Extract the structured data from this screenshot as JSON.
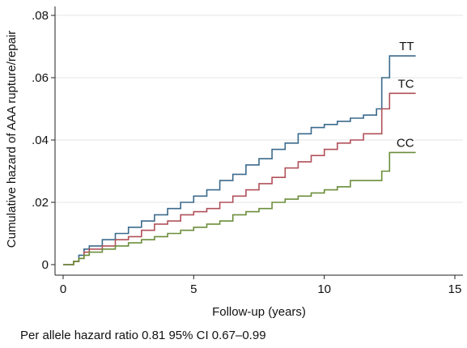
{
  "chart_data": {
    "type": "line",
    "step": true,
    "xlabel": "Follow-up (years)",
    "ylabel": "Cumulative hazard of AAA rupture/repair",
    "xlim": [
      0,
      15
    ],
    "ylim": [
      0,
      0.08
    ],
    "x_ticks": [
      0,
      5,
      10,
      15
    ],
    "x_tick_labels": [
      "0",
      "5",
      "10",
      "15"
    ],
    "y_ticks": [
      0,
      0.02,
      0.04,
      0.06,
      0.08
    ],
    "y_tick_labels": [
      "0",
      ".02",
      ".04",
      ".06",
      ".08"
    ],
    "grid": "horizontal",
    "series": [
      {
        "name": "TT",
        "color": "#3b6a8c",
        "points": [
          [
            0,
            0
          ],
          [
            0.3,
            0
          ],
          [
            0.4,
            0.001
          ],
          [
            0.6,
            0.003
          ],
          [
            0.8,
            0.005
          ],
          [
            1,
            0.006
          ],
          [
            1.5,
            0.008
          ],
          [
            2,
            0.01
          ],
          [
            2.5,
            0.012
          ],
          [
            3,
            0.014
          ],
          [
            3.5,
            0.016
          ],
          [
            4,
            0.018
          ],
          [
            4.5,
            0.02
          ],
          [
            5,
            0.022
          ],
          [
            5.5,
            0.024
          ],
          [
            6,
            0.027
          ],
          [
            6.5,
            0.029
          ],
          [
            7,
            0.032
          ],
          [
            7.5,
            0.034
          ],
          [
            8,
            0.037
          ],
          [
            8.5,
            0.039
          ],
          [
            9,
            0.042
          ],
          [
            9.5,
            0.044
          ],
          [
            10,
            0.045
          ],
          [
            10.5,
            0.046
          ],
          [
            11,
            0.047
          ],
          [
            11.5,
            0.048
          ],
          [
            12,
            0.05
          ],
          [
            12.2,
            0.06
          ],
          [
            12.5,
            0.067
          ],
          [
            13.5,
            0.067
          ]
        ]
      },
      {
        "name": "TC",
        "color": "#b0505a",
        "points": [
          [
            0,
            0
          ],
          [
            0.3,
            0
          ],
          [
            0.4,
            0.001
          ],
          [
            0.6,
            0.002
          ],
          [
            0.8,
            0.004
          ],
          [
            1,
            0.005
          ],
          [
            1.5,
            0.006
          ],
          [
            2,
            0.008
          ],
          [
            2.5,
            0.009
          ],
          [
            3,
            0.011
          ],
          [
            3.5,
            0.013
          ],
          [
            4,
            0.014
          ],
          [
            4.5,
            0.016
          ],
          [
            5,
            0.017
          ],
          [
            5.5,
            0.018
          ],
          [
            6,
            0.02
          ],
          [
            6.5,
            0.022
          ],
          [
            7,
            0.024
          ],
          [
            7.5,
            0.026
          ],
          [
            8,
            0.028
          ],
          [
            8.5,
            0.031
          ],
          [
            9,
            0.033
          ],
          [
            9.5,
            0.035
          ],
          [
            10,
            0.037
          ],
          [
            10.5,
            0.039
          ],
          [
            11,
            0.04
          ],
          [
            11.5,
            0.042
          ],
          [
            12,
            0.042
          ],
          [
            12.2,
            0.05
          ],
          [
            12.5,
            0.055
          ],
          [
            13.5,
            0.055
          ]
        ]
      },
      {
        "name": "CC",
        "color": "#6b8e3a",
        "points": [
          [
            0,
            0
          ],
          [
            0.3,
            0
          ],
          [
            0.4,
            0.001
          ],
          [
            0.6,
            0.002
          ],
          [
            0.8,
            0.003
          ],
          [
            1,
            0.004
          ],
          [
            1.5,
            0.005
          ],
          [
            2,
            0.006
          ],
          [
            2.5,
            0.007
          ],
          [
            3,
            0.008
          ],
          [
            3.5,
            0.009
          ],
          [
            4,
            0.01
          ],
          [
            4.5,
            0.011
          ],
          [
            5,
            0.012
          ],
          [
            5.5,
            0.013
          ],
          [
            6,
            0.014
          ],
          [
            6.5,
            0.016
          ],
          [
            7,
            0.017
          ],
          [
            7.5,
            0.018
          ],
          [
            8,
            0.02
          ],
          [
            8.5,
            0.021
          ],
          [
            9,
            0.022
          ],
          [
            9.5,
            0.023
          ],
          [
            10,
            0.024
          ],
          [
            10.5,
            0.025
          ],
          [
            11,
            0.027
          ],
          [
            11.5,
            0.027
          ],
          [
            12,
            0.027
          ],
          [
            12.2,
            0.03
          ],
          [
            12.5,
            0.036
          ],
          [
            13.5,
            0.036
          ]
        ]
      }
    ]
  },
  "caption": "Per allele hazard ratio 0.81 95% CI 0.67–0.99"
}
